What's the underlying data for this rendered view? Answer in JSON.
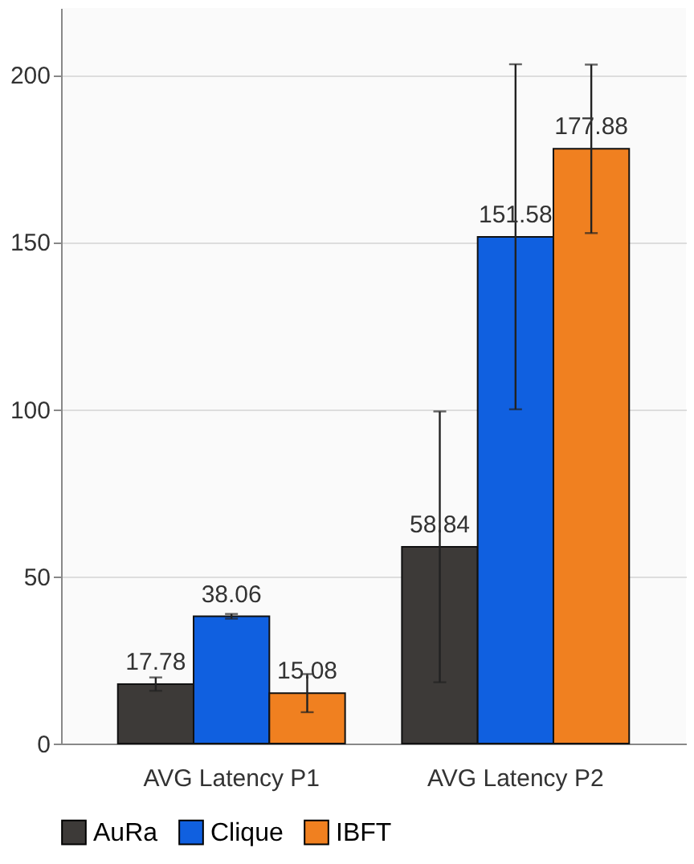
{
  "chart_data": {
    "type": "bar",
    "categories": [
      "AVG Latency P1",
      "AVG Latency P2"
    ],
    "series": [
      {
        "name": "AuRa",
        "color": "#3d3a38",
        "values": [
          17.78,
          58.84
        ],
        "errors": [
          2,
          40.5
        ]
      },
      {
        "name": "Clique",
        "color": "#1060e0",
        "values": [
          38.06,
          151.58
        ],
        "errors": [
          0.7,
          51.6
        ]
      },
      {
        "name": "IBFT",
        "color": "#f08020",
        "values": [
          15.08,
          177.88
        ],
        "errors": [
          5.7,
          25.2
        ]
      }
    ],
    "ylim": [
      0,
      220
    ],
    "yticks": [
      0,
      50,
      100,
      150,
      200
    ],
    "grid": "y",
    "legend": "bottom",
    "data_labels": true
  }
}
